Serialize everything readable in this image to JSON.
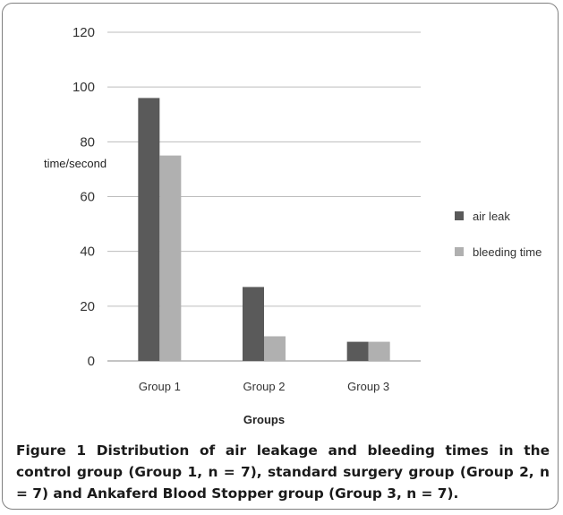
{
  "chart_data": {
    "type": "bar",
    "categories": [
      "Group 1",
      "Group 2",
      "Group 3"
    ],
    "series": [
      {
        "name": "air leak",
        "values": [
          96,
          27,
          7
        ],
        "color": "#5a5a5a"
      },
      {
        "name": "bleeding time",
        "values": [
          75,
          9,
          7
        ],
        "color": "#b0b0b0"
      }
    ],
    "ylabel": "time/second",
    "xlabel": "Groups",
    "ylim": [
      0,
      120
    ],
    "yticks": [
      0,
      20,
      40,
      60,
      80,
      100,
      120
    ],
    "grid": true,
    "legend": "right"
  },
  "caption": {
    "label": "Figure 1",
    "text": "Distribution of air leakage and bleeding times in the control group (Group 1, n = 7), standard surgery group (Group 2, n = 7) and Ankaferd Blood Stopper group (Group 3, n = 7)."
  }
}
